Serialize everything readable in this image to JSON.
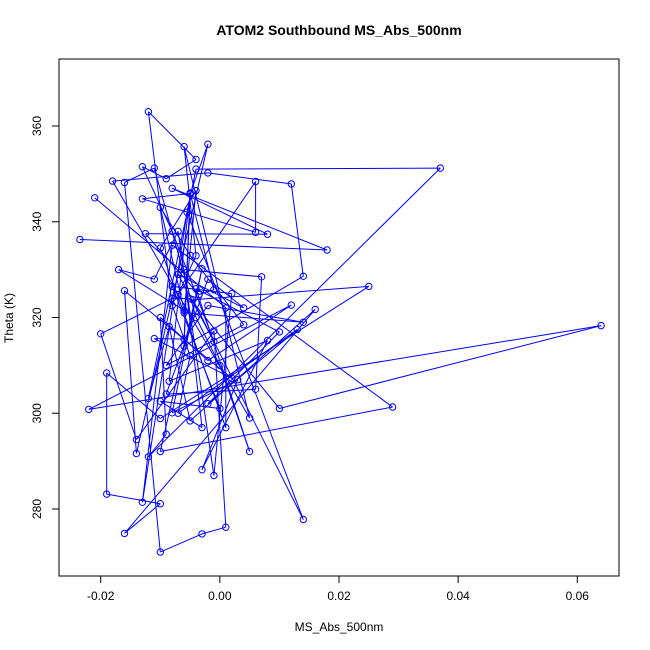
{
  "chart_data": {
    "type": "line",
    "title": "ATOM2 Southbound MS_Abs_500nm",
    "xlabel": "MS_Abs_500nm",
    "ylabel": "Theta (K)",
    "xlim": [
      -0.027,
      0.067
    ],
    "ylim": [
      266,
      374
    ],
    "xticks": [
      -0.02,
      0.0,
      0.02,
      0.04,
      0.06
    ],
    "xtick_labels": [
      "-0.02",
      "0.00",
      "0.02",
      "0.04",
      "0.06"
    ],
    "yticks": [
      280,
      300,
      320,
      340,
      360
    ],
    "yticks_labels": [
      "280",
      "300",
      "320",
      "340",
      "360"
    ],
    "grid": false,
    "series": [
      {
        "color": "#0000ff",
        "marker": "open-circle",
        "connected": true,
        "points": [
          [
            -0.0235,
            336.3
          ],
          [
            0.018,
            334.1
          ],
          [
            -0.008,
            347.0
          ],
          [
            0.008,
            337.4
          ],
          [
            -0.0125,
            337.5
          ],
          [
            -0.0035,
            324.8
          ],
          [
            -0.001,
            325.8
          ],
          [
            -0.005,
            346.0
          ],
          [
            -0.006,
            314.0
          ],
          [
            0.014,
            328.6
          ],
          [
            0.012,
            347.9
          ],
          [
            -0.002,
            350.2
          ],
          [
            -0.018,
            348.5
          ],
          [
            0.005,
            299.0
          ],
          [
            -0.006,
            355.7
          ],
          [
            -0.004,
            332.9
          ],
          [
            -0.007,
            324.8
          ],
          [
            0.006,
            348.4
          ],
          [
            0.006,
            337.8
          ],
          [
            -0.013,
            344.8
          ],
          [
            -0.005,
            345.9
          ],
          [
            -0.006,
            315.5
          ],
          [
            -0.011,
            315.6
          ],
          [
            0.002,
            307.3
          ],
          [
            -0.016,
            325.6
          ],
          [
            -0.014,
            291.6
          ],
          [
            -0.002,
            356.2
          ],
          [
            -0.005,
            345.8
          ],
          [
            -0.0085,
            306.7
          ],
          [
            0.008,
            315.2
          ],
          [
            -0.003,
            288.2
          ],
          [
            0.003,
            307.0
          ],
          [
            -0.008,
            300.1
          ],
          [
            -0.003,
            330.2
          ],
          [
            -0.01,
            292.0
          ],
          [
            0.029,
            301.3
          ],
          [
            -0.008,
            335.1
          ],
          [
            -0.013,
            281.4
          ],
          [
            -0.0055,
            342.0
          ],
          [
            0.014,
            277.8
          ],
          [
            -0.0045,
            323.7
          ],
          [
            0.025,
            326.5
          ],
          [
            -0.01,
            298.9
          ],
          [
            -0.019,
            308.4
          ],
          [
            -0.019,
            283.1
          ],
          [
            -0.01,
            281.1
          ],
          [
            -0.016,
            274.9
          ],
          [
            0.016,
            321.7
          ],
          [
            -0.005,
            298.4
          ],
          [
            -0.0085,
            318.1
          ],
          [
            -0.012,
            303.1
          ],
          [
            -0.004,
            351.0
          ],
          [
            0.037,
            351.2
          ],
          [
            -0.012,
            290.9
          ],
          [
            -0.009,
            295.6
          ],
          [
            -0.01,
            320.0
          ],
          [
            -0.002,
            311.0
          ],
          [
            0.012,
            322.6
          ],
          [
            -0.022,
            300.8
          ],
          [
            0.064,
            318.3
          ],
          [
            0.01,
            301.0
          ],
          [
            -0.005,
            323.9
          ],
          [
            -0.008,
            324.0
          ],
          [
            -0.02,
            316.6
          ],
          [
            -0.014,
            294.5
          ],
          [
            -0.001,
            317.2
          ],
          [
            0.001,
            276.2
          ],
          [
            -0.003,
            274.8
          ],
          [
            -0.01,
            271.0
          ],
          [
            -0.016,
            348.2
          ],
          [
            -0.011,
            351.2
          ],
          [
            -0.004,
            320.0
          ],
          [
            0.0,
            310.0
          ],
          [
            0.005,
            292.0
          ],
          [
            -0.004,
            326.0
          ],
          [
            0.01,
            317.0
          ],
          [
            -0.002,
            302.0
          ],
          [
            0.013,
            317.5
          ],
          [
            -0.007,
            300.0
          ],
          [
            -0.005,
            312.0
          ],
          [
            -0.008,
            322.5
          ],
          [
            -0.012,
            363.0
          ],
          [
            -0.004,
            353.0
          ],
          [
            -0.009,
            349.0
          ],
          [
            -0.013,
            351.5
          ],
          [
            -0.008,
            338.0
          ],
          [
            -0.001,
            315.0
          ],
          [
            -0.007,
            329.0
          ],
          [
            0.004,
            322.0
          ],
          [
            -0.002,
            328.0
          ],
          [
            -0.009,
            304.0
          ],
          [
            0.006,
            305.0
          ],
          [
            0.007,
            328.5
          ],
          [
            -0.006,
            330.0
          ],
          [
            -0.003,
            297.0
          ],
          [
            -0.01,
            302.5
          ],
          [
            0.0,
            301.0
          ],
          [
            -0.008,
            326.5
          ],
          [
            0.002,
            325.0
          ],
          [
            -0.001,
            287.0
          ],
          [
            -0.007,
            338.0
          ],
          [
            -0.011,
            328.0
          ],
          [
            -0.017,
            330.0
          ],
          [
            -0.006,
            321.5
          ],
          [
            -0.01,
            343.0
          ],
          [
            -0.005,
            333.0
          ],
          [
            0.004,
            318.5
          ],
          [
            -0.009,
            310.0
          ],
          [
            -0.002,
            322.5
          ],
          [
            0.014,
            319.0
          ],
          [
            -0.006,
            321.0
          ],
          [
            -0.004,
            346.5
          ],
          [
            -0.01,
            334.5
          ],
          [
            0.001,
            297.0
          ],
          [
            0.001,
            322.0
          ],
          [
            -0.021,
            345.0
          ]
        ]
      }
    ]
  }
}
